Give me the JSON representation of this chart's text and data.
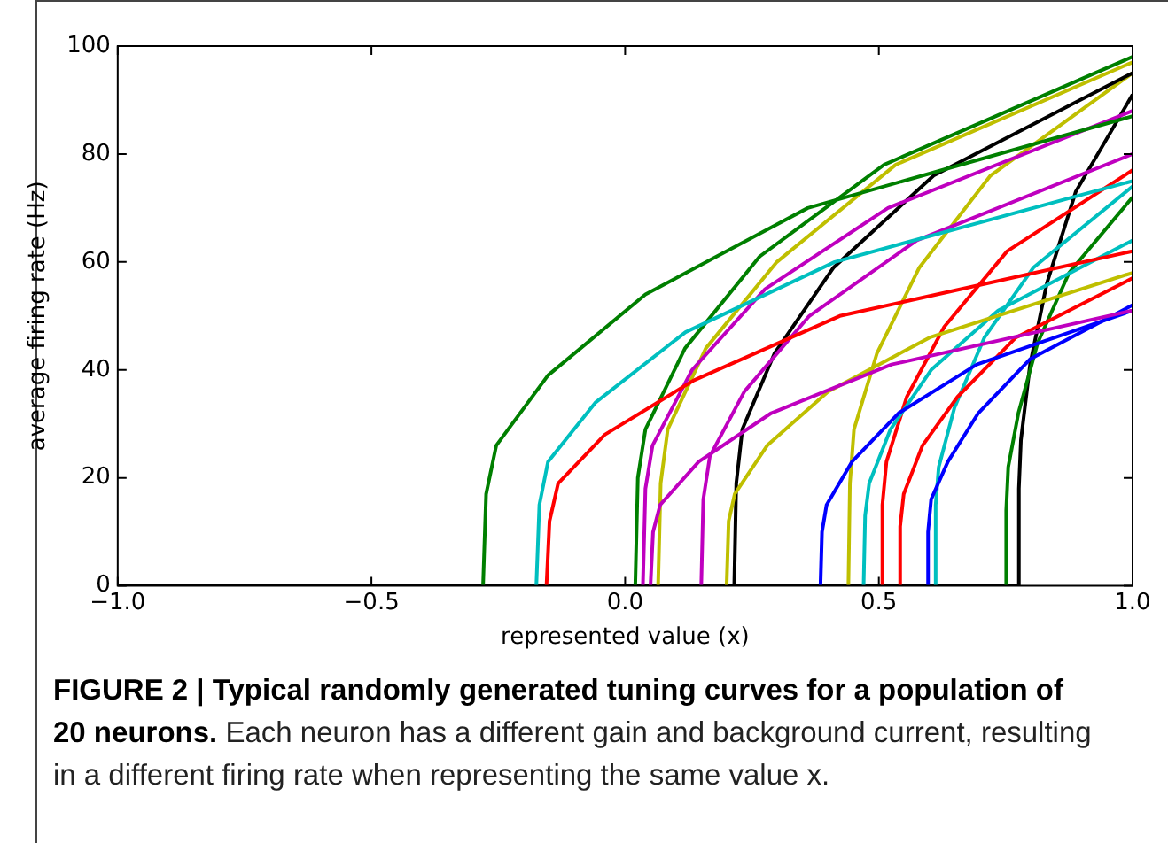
{
  "chart_data": {
    "type": "line",
    "xlabel": "represented value (x)",
    "ylabel": "average firing rate (Hz)",
    "xlim": [
      -1.0,
      1.0
    ],
    "ylim": [
      0,
      100
    ],
    "xticks": [
      {
        "value": -1.0,
        "label": "−1.0"
      },
      {
        "value": -0.5,
        "label": "−0.5"
      },
      {
        "value": 0,
        "label": "0.0"
      },
      {
        "value": 0.5,
        "label": "0.5"
      },
      {
        "value": 1.0,
        "label": "1.0"
      }
    ],
    "yticks": [
      0,
      20,
      40,
      60,
      80,
      100
    ],
    "grid": false,
    "legend": false,
    "marker": "none",
    "line_style": "solid",
    "annotations": [
      "FIGURE 2 | Typical randomly generated tuning curves for a population of 20 neurons.",
      "Each neuron has a different gain and background current, resulting in a different firing rate when representing the same value x."
    ],
    "series": [
      {
        "color": "#007f00",
        "x": [
          -0.28,
          -0.274,
          -0.254,
          -0.152,
          0.04,
          0.36,
          1
        ],
        "values": [
          0,
          17,
          26,
          39,
          54,
          70,
          87
        ]
      },
      {
        "color": "#00bfbf",
        "x": [
          -0.175,
          -0.169,
          -0.152,
          -0.058,
          0.119,
          0.413,
          1
        ],
        "values": [
          0,
          15,
          23,
          34,
          47,
          60,
          75
        ]
      },
      {
        "color": "#ff0000",
        "x": [
          -0.155,
          -0.149,
          -0.132,
          -0.04,
          0.134,
          0.423,
          1
        ],
        "values": [
          0,
          12,
          19,
          28,
          38,
          50,
          62
        ]
      },
      {
        "color": "#007f00",
        "x": [
          0.02,
          0.025,
          0.04,
          0.118,
          0.265,
          0.51,
          1
        ],
        "values": [
          0,
          20,
          29,
          44,
          61,
          78,
          98
        ]
      },
      {
        "color": "#bf00bf",
        "x": [
          0.035,
          0.04,
          0.054,
          0.132,
          0.276,
          0.518,
          1
        ],
        "values": [
          0,
          18,
          26,
          40,
          55,
          70,
          88
        ]
      },
      {
        "color": "#bf00bf",
        "x": [
          0.05,
          0.055,
          0.069,
          0.145,
          0.288,
          0.525,
          1
        ],
        "values": [
          0,
          10,
          15,
          23,
          32,
          41,
          51
        ]
      },
      {
        "color": "#bfbf00",
        "x": [
          0.065,
          0.07,
          0.084,
          0.159,
          0.299,
          0.533,
          1
        ],
        "values": [
          0,
          19,
          29,
          44,
          60,
          78,
          97
        ]
      },
      {
        "color": "#bf00bf",
        "x": [
          0.15,
          0.154,
          0.167,
          0.235,
          0.363,
          0.575,
          1
        ],
        "values": [
          0,
          16,
          24,
          36,
          50,
          64,
          80
        ]
      },
      {
        "color": "#bfbf00",
        "x": [
          0.2,
          0.204,
          0.216,
          0.28,
          0.4,
          0.6,
          1
        ],
        "values": [
          0,
          12,
          17,
          26,
          36,
          46,
          58
        ]
      },
      {
        "color": "#000000",
        "x": [
          0.215,
          0.219,
          0.231,
          0.294,
          0.411,
          0.608,
          1
        ],
        "values": [
          0,
          19,
          29,
          43,
          59,
          76,
          95
        ]
      },
      {
        "color": "#0000ff",
        "x": [
          0.385,
          0.388,
          0.397,
          0.447,
          0.539,
          0.693,
          1
        ],
        "values": [
          0,
          10,
          15,
          23,
          32,
          41,
          51
        ]
      },
      {
        "color": "#bfbf00",
        "x": [
          0.44,
          0.443,
          0.451,
          0.496,
          0.58,
          0.72,
          1
        ],
        "values": [
          0,
          19,
          29,
          43,
          59,
          76,
          95
        ]
      },
      {
        "color": "#00bfbf",
        "x": [
          0.47,
          0.473,
          0.481,
          0.523,
          0.603,
          0.735,
          1
        ],
        "values": [
          0,
          13,
          19,
          29,
          40,
          51,
          64
        ]
      },
      {
        "color": "#ff0000",
        "x": [
          0.505,
          0.507,
          0.515,
          0.555,
          0.629,
          0.753,
          1
        ],
        "values": [
          0,
          15,
          23,
          35,
          48,
          62,
          77
        ]
      },
      {
        "color": "#ff0000",
        "x": [
          0.54,
          0.542,
          0.549,
          0.586,
          0.655,
          0.77,
          1
        ],
        "values": [
          0,
          11,
          17,
          26,
          35,
          46,
          57
        ]
      },
      {
        "color": "#0000ff",
        "x": [
          0.595,
          0.597,
          0.603,
          0.636,
          0.696,
          0.798,
          1
        ],
        "values": [
          0,
          10,
          16,
          23,
          32,
          42,
          52
        ]
      },
      {
        "color": "#00bfbf",
        "x": [
          0.61,
          0.612,
          0.618,
          0.649,
          0.708,
          0.805,
          1
        ],
        "values": [
          0,
          15,
          22,
          33,
          46,
          59,
          74
        ]
      },
      {
        "color": "#007f00",
        "x": [
          0.75,
          0.751,
          0.755,
          0.775,
          0.813,
          0.875,
          1
        ],
        "values": [
          0,
          14,
          22,
          32,
          45,
          58,
          72
        ]
      },
      {
        "color": "#000000",
        "x": [
          -1,
          0.775,
          0.776,
          0.78,
          0.798,
          0.831,
          0.888,
          1
        ],
        "values": [
          0,
          0,
          18,
          27,
          41,
          56,
          73,
          91
        ]
      }
    ]
  }
}
